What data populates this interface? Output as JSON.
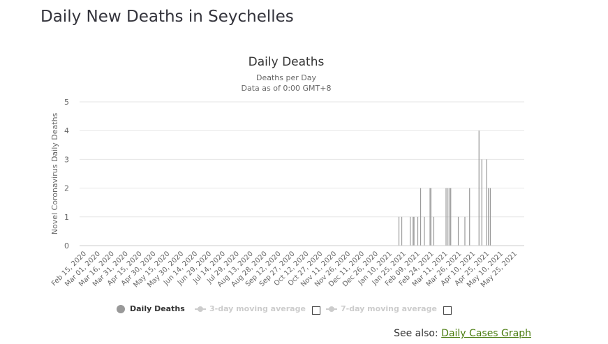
{
  "page": {
    "title": "Daily New Deaths in Seychelles",
    "see_also_label": "See also:",
    "see_also_link": "Daily Cases Graph"
  },
  "legend": {
    "daily_deaths": "Daily Deaths",
    "avg3": "3-day moving average",
    "avg7": "7-day moving average"
  },
  "chart_data": {
    "type": "bar",
    "title": "Daily Deaths",
    "subtitle1": "Deaths per Day",
    "subtitle2": "Data as of 0:00 GMT+8",
    "xlabel": "",
    "ylabel": "Novel Coronavirus Daily Deaths",
    "ylim": [
      0,
      5
    ],
    "yticks": [
      0,
      1,
      2,
      3,
      4,
      5
    ],
    "x_start": "2020-02-15",
    "x_end": "2021-06-01",
    "xtick_labels": [
      "Feb 15, 2020",
      "Mar 01, 2020",
      "Mar 16, 2020",
      "Mar 31, 2020",
      "Apr 15, 2020",
      "Apr 30, 2020",
      "May 15, 2020",
      "May 30, 2020",
      "Jun 14, 2020",
      "Jun 29, 2020",
      "Jul 14, 2020",
      "Jul 29, 2020",
      "Aug 13, 2020",
      "Aug 28, 2020",
      "Sep 12, 2020",
      "Sep 27, 2020",
      "Oct 12, 2020",
      "Oct 27, 2020",
      "Nov 11, 2020",
      "Nov 26, 2020",
      "Dec 11, 2020",
      "Dec 26, 2020",
      "Jan 10, 2021",
      "Jan 25, 2021",
      "Feb 09, 2021",
      "Feb 24, 2021",
      "Mar 11, 2021",
      "Mar 26, 2021",
      "Apr 10, 2021",
      "Apr 25, 2021",
      "May 10, 2021",
      "May 25, 2021"
    ],
    "series": [
      {
        "name": "Daily Deaths",
        "color": "#999999",
        "points": [
          {
            "x": "2021-01-19",
            "y": 1
          },
          {
            "x": "2021-01-22",
            "y": 1
          },
          {
            "x": "2021-01-31",
            "y": 1
          },
          {
            "x": "2021-02-03",
            "y": 1
          },
          {
            "x": "2021-02-04",
            "y": 1
          },
          {
            "x": "2021-02-08",
            "y": 1
          },
          {
            "x": "2021-02-11",
            "y": 2
          },
          {
            "x": "2021-02-15",
            "y": 1
          },
          {
            "x": "2021-02-21",
            "y": 2
          },
          {
            "x": "2021-02-22",
            "y": 2
          },
          {
            "x": "2021-02-25",
            "y": 1
          },
          {
            "x": "2021-03-10",
            "y": 2
          },
          {
            "x": "2021-03-12",
            "y": 2
          },
          {
            "x": "2021-03-14",
            "y": 2
          },
          {
            "x": "2021-03-15",
            "y": 2
          },
          {
            "x": "2021-03-23",
            "y": 1
          },
          {
            "x": "2021-03-30",
            "y": 1
          },
          {
            "x": "2021-04-04",
            "y": 2
          },
          {
            "x": "2021-04-14",
            "y": 4
          },
          {
            "x": "2021-04-17",
            "y": 3
          },
          {
            "x": "2021-04-22",
            "y": 3
          },
          {
            "x": "2021-04-24",
            "y": 2
          },
          {
            "x": "2021-04-26",
            "y": 2
          }
        ]
      },
      {
        "name": "3-day moving average",
        "visible": false
      },
      {
        "name": "7-day moving average",
        "visible": false
      }
    ]
  }
}
